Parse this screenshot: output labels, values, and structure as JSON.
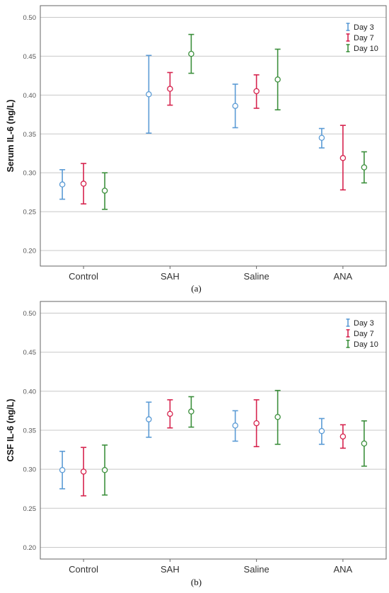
{
  "colors": {
    "Day 3": "#5b9bd5",
    "Day 7": "#d6244e",
    "Day 10": "#3c8f3c",
    "grid": "#c8c8c8",
    "frame": "#666666"
  },
  "chart_data": [
    {
      "type": "errorbar",
      "panel": "(a)",
      "ylabel": "Serum IL-6 (ng/L)",
      "xlabel": "",
      "categories": [
        "Control",
        "SAH",
        "Saline",
        "ANA"
      ],
      "ylim": [
        0.18,
        0.515
      ],
      "yticks": [
        "0.20",
        "0.25",
        "0.30",
        "0.35",
        "0.40",
        "0.45",
        "0.50"
      ],
      "grid": true,
      "legend_position": "top-right",
      "series": [
        {
          "name": "Day 3",
          "mean": [
            0.285,
            0.401,
            0.386,
            0.345
          ],
          "lower": [
            0.266,
            0.351,
            0.358,
            0.332
          ],
          "upper": [
            0.304,
            0.451,
            0.414,
            0.357
          ]
        },
        {
          "name": "Day 7",
          "mean": [
            0.286,
            0.408,
            0.405,
            0.319
          ],
          "lower": [
            0.26,
            0.387,
            0.383,
            0.278
          ],
          "upper": [
            0.312,
            0.429,
            0.426,
            0.361
          ]
        },
        {
          "name": "Day 10",
          "mean": [
            0.277,
            0.453,
            0.42,
            0.307
          ],
          "lower": [
            0.253,
            0.428,
            0.381,
            0.287
          ],
          "upper": [
            0.3,
            0.478,
            0.459,
            0.327
          ]
        }
      ]
    },
    {
      "type": "errorbar",
      "panel": "(b)",
      "ylabel": "CSF IL-6 (ng/L)",
      "xlabel": "",
      "categories": [
        "Control",
        "SAH",
        "Saline",
        "ANA"
      ],
      "ylim": [
        0.185,
        0.515
      ],
      "yticks": [
        "0.20",
        "0.25",
        "0.30",
        "0.35",
        "0.40",
        "0.45",
        "0.50"
      ],
      "grid": true,
      "legend_position": "top-right",
      "series": [
        {
          "name": "Day 3",
          "mean": [
            0.299,
            0.364,
            0.356,
            0.349
          ],
          "lower": [
            0.275,
            0.341,
            0.336,
            0.332
          ],
          "upper": [
            0.323,
            0.386,
            0.375,
            0.365
          ]
        },
        {
          "name": "Day 7",
          "mean": [
            0.297,
            0.371,
            0.359,
            0.342
          ],
          "lower": [
            0.266,
            0.353,
            0.329,
            0.327
          ],
          "upper": [
            0.328,
            0.389,
            0.389,
            0.357
          ]
        },
        {
          "name": "Day 10",
          "mean": [
            0.299,
            0.374,
            0.367,
            0.333
          ],
          "lower": [
            0.267,
            0.354,
            0.332,
            0.304
          ],
          "upper": [
            0.331,
            0.393,
            0.401,
            0.362
          ]
        }
      ]
    }
  ]
}
